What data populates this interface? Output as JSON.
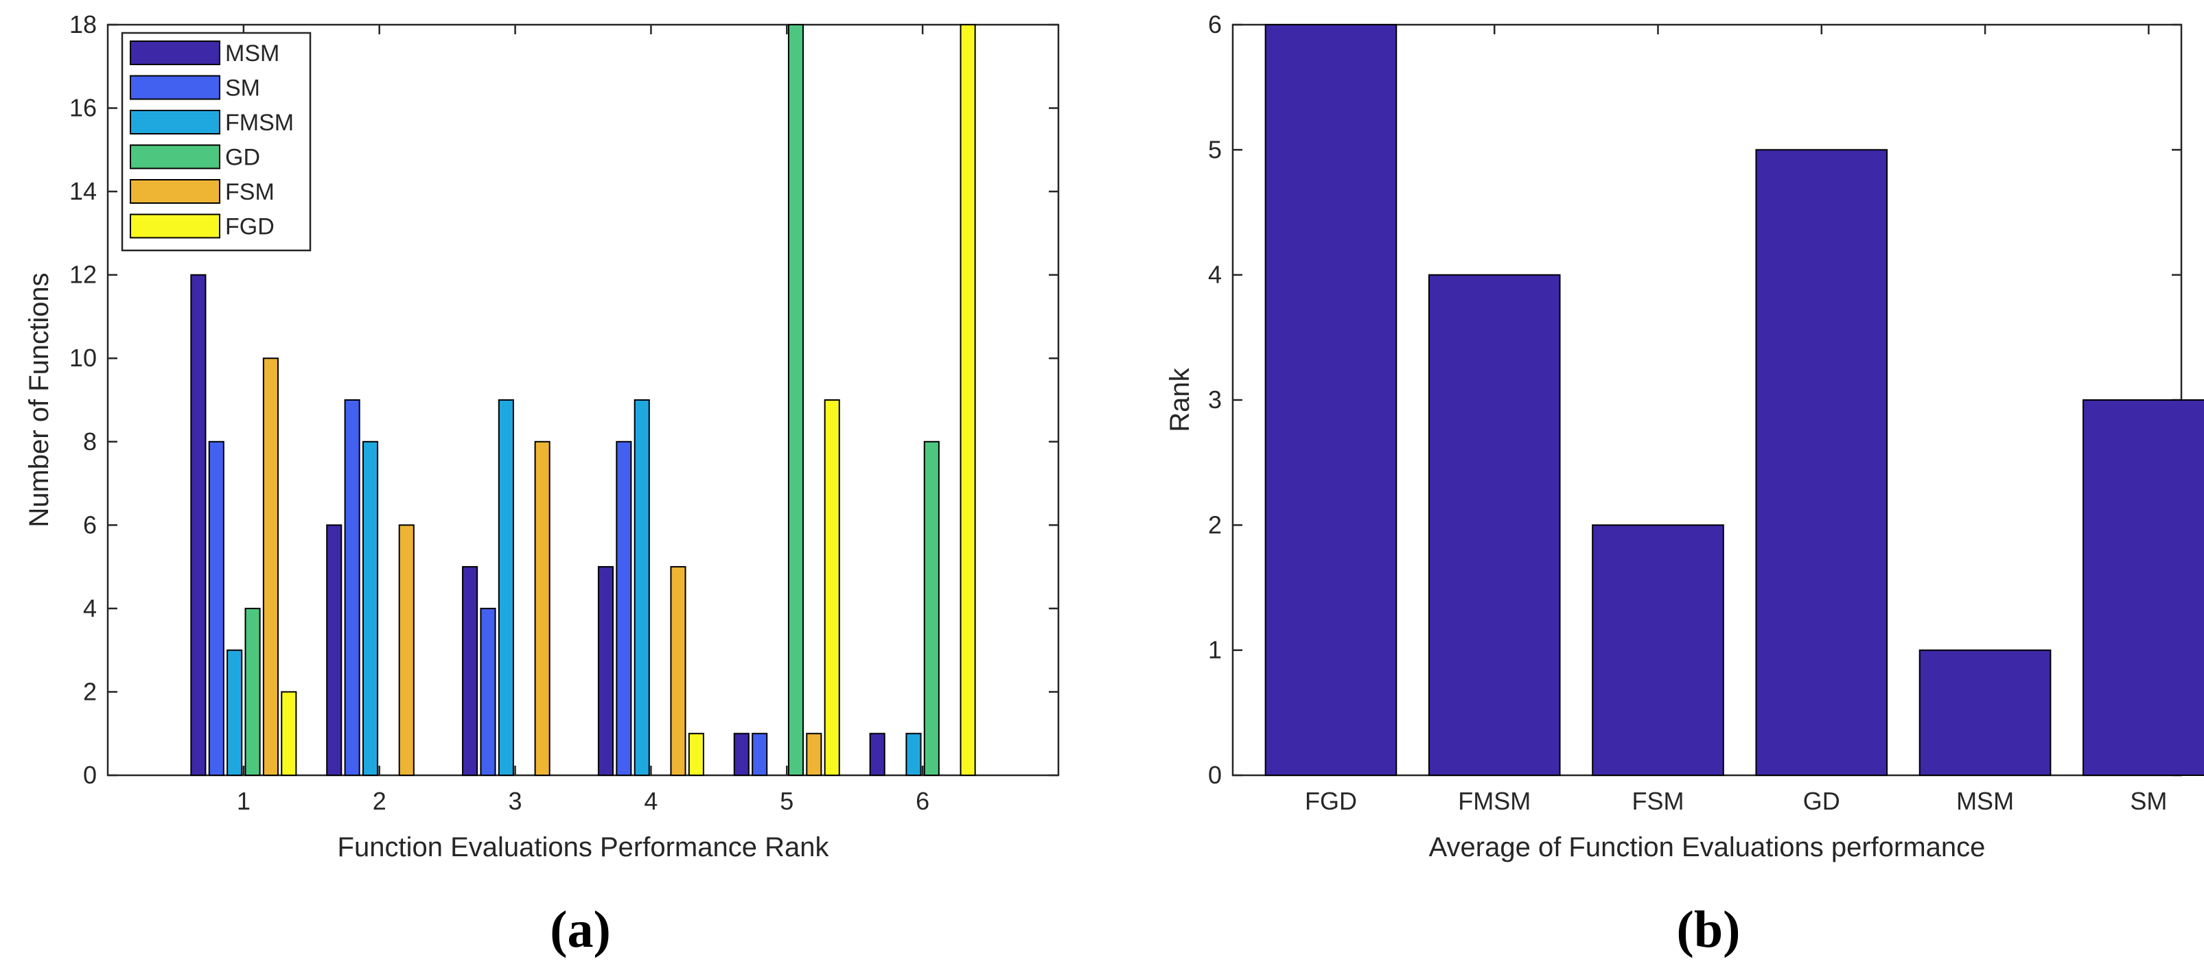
{
  "chart_data": [
    {
      "type": "bar",
      "panel_label": "(a)",
      "xlabel": "Function Evaluations Performance Rank",
      "ylabel": "Number of Functions",
      "categories": [
        "1",
        "2",
        "3",
        "4",
        "5",
        "6"
      ],
      "ylim": [
        0,
        18
      ],
      "yticks": [
        "0",
        "2",
        "4",
        "6",
        "8",
        "10",
        "12",
        "14",
        "16",
        "18"
      ],
      "legend_position": "top-left",
      "series": [
        {
          "name": "MSM",
          "color": "#3d28a8",
          "values": [
            12,
            6,
            5,
            5,
            1,
            1
          ]
        },
        {
          "name": "SM",
          "color": "#4361f1",
          "values": [
            8,
            9,
            4,
            8,
            1,
            0
          ]
        },
        {
          "name": "FMSM",
          "color": "#1fa8e0",
          "values": [
            3,
            8,
            9,
            9,
            0,
            1
          ]
        },
        {
          "name": "GD",
          "color": "#4dc77f",
          "values": [
            4,
            0,
            0,
            0,
            18,
            8
          ]
        },
        {
          "name": "FSM",
          "color": "#eeb434",
          "values": [
            10,
            6,
            8,
            5,
            1,
            0
          ]
        },
        {
          "name": "FGD",
          "color": "#f9f920",
          "values": [
            2,
            0,
            0,
            1,
            9,
            18
          ]
        }
      ]
    },
    {
      "type": "bar",
      "panel_label": "(b)",
      "xlabel": "Average of Function Evaluations performance",
      "ylabel": "Rank",
      "categories": [
        "FGD",
        "FMSM",
        "FSM",
        "GD",
        "MSM",
        "SM"
      ],
      "values": [
        6,
        4,
        2,
        5,
        1,
        3
      ],
      "color": "#3d28a8",
      "ylim": [
        0,
        6
      ],
      "yticks": [
        "0",
        "1",
        "2",
        "3",
        "4",
        "5",
        "6"
      ]
    }
  ]
}
